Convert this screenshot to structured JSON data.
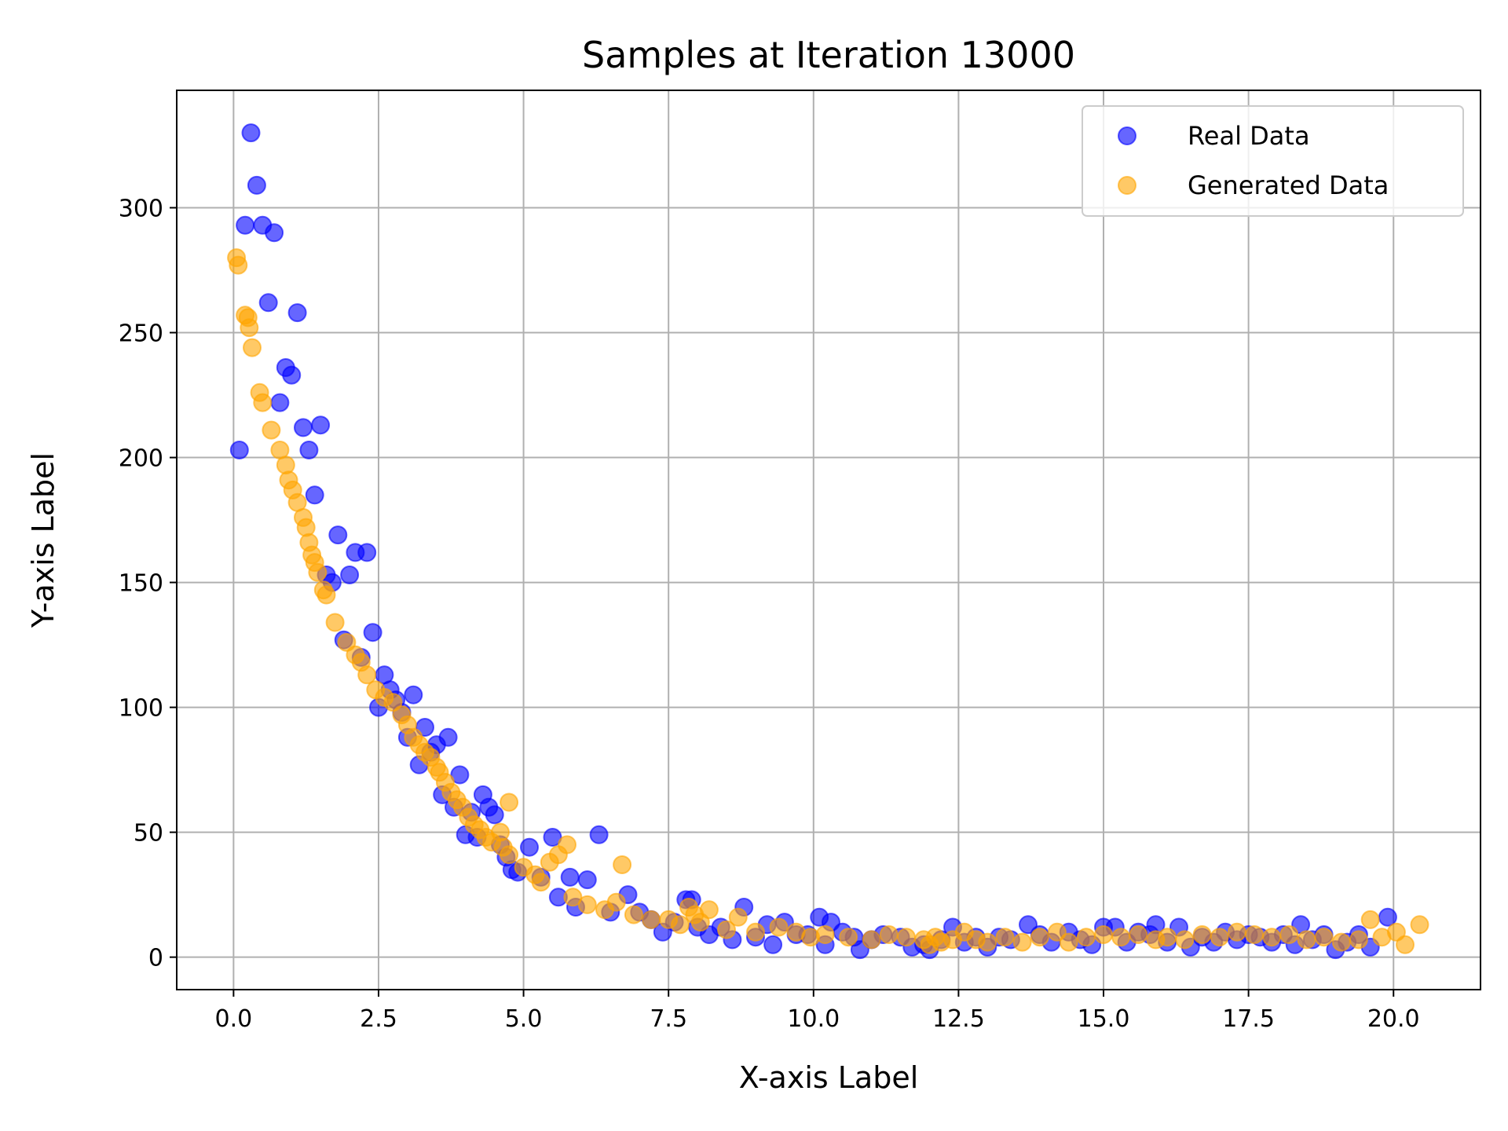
{
  "chart_data": {
    "type": "scatter",
    "title": "Samples at Iteration 13000",
    "xlabel": "X-axis Label",
    "ylabel": "Y-axis Label",
    "xlim": [
      -0.98,
      21.5
    ],
    "ylim": [
      -13,
      347
    ],
    "x_ticks": [
      0.0,
      2.5,
      5.0,
      7.5,
      10.0,
      12.5,
      15.0,
      17.5,
      20.0
    ],
    "x_tick_labels": [
      "0.0",
      "2.5",
      "5.0",
      "7.5",
      "10.0",
      "12.5",
      "15.0",
      "17.5",
      "20.0"
    ],
    "y_ticks": [
      0,
      50,
      100,
      150,
      200,
      250,
      300
    ],
    "y_tick_labels": [
      "0",
      "50",
      "100",
      "150",
      "200",
      "250",
      "300"
    ],
    "grid": true,
    "legend_position": "top-right",
    "series": [
      {
        "name": "Real Data",
        "color": "#0000ff",
        "alpha": 0.6,
        "points": [
          [
            0.1,
            203
          ],
          [
            0.2,
            293
          ],
          [
            0.3,
            330
          ],
          [
            0.4,
            309
          ],
          [
            0.5,
            293
          ],
          [
            0.6,
            262
          ],
          [
            0.7,
            290
          ],
          [
            0.8,
            222
          ],
          [
            0.9,
            236
          ],
          [
            1.0,
            233
          ],
          [
            1.1,
            258
          ],
          [
            1.2,
            212
          ],
          [
            1.3,
            203
          ],
          [
            1.4,
            185
          ],
          [
            1.5,
            213
          ],
          [
            1.6,
            153
          ],
          [
            1.7,
            150
          ],
          [
            1.8,
            169
          ],
          [
            1.9,
            127
          ],
          [
            2.0,
            153
          ],
          [
            2.1,
            162
          ],
          [
            2.2,
            120
          ],
          [
            2.3,
            162
          ],
          [
            2.4,
            130
          ],
          [
            2.5,
            100
          ],
          [
            2.6,
            113
          ],
          [
            2.7,
            107
          ],
          [
            2.8,
            103
          ],
          [
            2.9,
            98
          ],
          [
            3.0,
            88
          ],
          [
            3.1,
            105
          ],
          [
            3.2,
            77
          ],
          [
            3.3,
            92
          ],
          [
            3.4,
            82
          ],
          [
            3.5,
            85
          ],
          [
            3.6,
            65
          ],
          [
            3.7,
            88
          ],
          [
            3.8,
            60
          ],
          [
            3.9,
            73
          ],
          [
            4.0,
            49
          ],
          [
            4.1,
            58
          ],
          [
            4.2,
            48
          ],
          [
            4.3,
            65
          ],
          [
            4.4,
            60
          ],
          [
            4.5,
            57
          ],
          [
            4.6,
            45
          ],
          [
            4.7,
            40
          ],
          [
            4.8,
            35
          ],
          [
            4.9,
            34
          ],
          [
            5.1,
            44
          ],
          [
            5.3,
            32
          ],
          [
            5.5,
            48
          ],
          [
            5.6,
            24
          ],
          [
            5.8,
            32
          ],
          [
            5.9,
            20
          ],
          [
            6.1,
            31
          ],
          [
            6.3,
            49
          ],
          [
            6.5,
            18
          ],
          [
            6.8,
            25
          ],
          [
            7.0,
            18
          ],
          [
            7.2,
            15
          ],
          [
            7.4,
            10
          ],
          [
            7.6,
            14
          ],
          [
            7.8,
            23
          ],
          [
            7.9,
            23
          ],
          [
            8.0,
            12
          ],
          [
            8.2,
            9
          ],
          [
            8.4,
            12
          ],
          [
            8.6,
            7
          ],
          [
            8.8,
            20
          ],
          [
            9.0,
            8
          ],
          [
            9.2,
            13
          ],
          [
            9.3,
            5
          ],
          [
            9.5,
            14
          ],
          [
            9.7,
            9
          ],
          [
            9.9,
            9
          ],
          [
            10.1,
            16
          ],
          [
            10.2,
            5
          ],
          [
            10.3,
            14
          ],
          [
            10.5,
            10
          ],
          [
            10.7,
            8
          ],
          [
            10.8,
            3
          ],
          [
            11.0,
            7
          ],
          [
            11.2,
            9
          ],
          [
            11.5,
            8
          ],
          [
            11.7,
            4
          ],
          [
            11.9,
            5
          ],
          [
            12.0,
            3
          ],
          [
            12.2,
            7
          ],
          [
            12.4,
            12
          ],
          [
            12.6,
            6
          ],
          [
            12.8,
            8
          ],
          [
            13.0,
            4
          ],
          [
            13.2,
            8
          ],
          [
            13.4,
            7
          ],
          [
            13.7,
            13
          ],
          [
            13.9,
            9
          ],
          [
            14.1,
            6
          ],
          [
            14.4,
            10
          ],
          [
            14.6,
            7
          ],
          [
            14.8,
            5
          ],
          [
            15.0,
            12
          ],
          [
            15.2,
            12
          ],
          [
            15.4,
            6
          ],
          [
            15.6,
            10
          ],
          [
            15.8,
            9
          ],
          [
            15.9,
            13
          ],
          [
            16.1,
            6
          ],
          [
            16.3,
            12
          ],
          [
            16.5,
            4
          ],
          [
            16.7,
            8
          ],
          [
            16.9,
            6
          ],
          [
            17.1,
            10
          ],
          [
            17.3,
            7
          ],
          [
            17.5,
            9
          ],
          [
            17.7,
            8
          ],
          [
            17.9,
            6
          ],
          [
            18.1,
            9
          ],
          [
            18.3,
            5
          ],
          [
            18.4,
            13
          ],
          [
            18.6,
            7
          ],
          [
            18.8,
            9
          ],
          [
            19.0,
            3
          ],
          [
            19.2,
            6
          ],
          [
            19.4,
            9
          ],
          [
            19.6,
            4
          ],
          [
            19.9,
            16
          ]
        ]
      },
      {
        "name": "Generated Data",
        "color": "#ffa500",
        "alpha": 0.6,
        "points": [
          [
            0.05,
            280
          ],
          [
            0.08,
            277
          ],
          [
            0.2,
            257
          ],
          [
            0.25,
            256
          ],
          [
            0.27,
            252
          ],
          [
            0.32,
            244
          ],
          [
            0.45,
            226
          ],
          [
            0.5,
            222
          ],
          [
            0.65,
            211
          ],
          [
            0.8,
            203
          ],
          [
            0.9,
            197
          ],
          [
            0.95,
            191
          ],
          [
            1.02,
            187
          ],
          [
            1.1,
            182
          ],
          [
            1.2,
            176
          ],
          [
            1.25,
            172
          ],
          [
            1.3,
            166
          ],
          [
            1.35,
            161
          ],
          [
            1.4,
            158
          ],
          [
            1.45,
            154
          ],
          [
            1.55,
            147
          ],
          [
            1.6,
            145
          ],
          [
            1.75,
            134
          ],
          [
            1.95,
            126
          ],
          [
            2.1,
            121
          ],
          [
            2.2,
            118
          ],
          [
            2.3,
            113
          ],
          [
            2.45,
            107
          ],
          [
            2.6,
            104
          ],
          [
            2.75,
            102
          ],
          [
            2.9,
            97
          ],
          [
            3.0,
            93
          ],
          [
            3.1,
            88
          ],
          [
            3.2,
            85
          ],
          [
            3.3,
            82
          ],
          [
            3.4,
            80
          ],
          [
            3.5,
            76
          ],
          [
            3.55,
            74
          ],
          [
            3.65,
            70
          ],
          [
            3.75,
            66
          ],
          [
            3.85,
            63
          ],
          [
            3.95,
            60
          ],
          [
            4.05,
            56
          ],
          [
            4.15,
            53
          ],
          [
            4.25,
            51
          ],
          [
            4.35,
            48
          ],
          [
            4.45,
            46
          ],
          [
            4.6,
            50
          ],
          [
            4.65,
            44
          ],
          [
            4.75,
            41
          ],
          [
            4.75,
            62
          ],
          [
            5.0,
            36
          ],
          [
            5.2,
            33
          ],
          [
            5.3,
            30
          ],
          [
            5.45,
            38
          ],
          [
            5.6,
            41
          ],
          [
            5.75,
            45
          ],
          [
            5.85,
            24
          ],
          [
            6.1,
            21
          ],
          [
            6.4,
            19
          ],
          [
            6.6,
            22
          ],
          [
            6.7,
            37
          ],
          [
            6.9,
            17
          ],
          [
            7.2,
            15
          ],
          [
            7.5,
            15
          ],
          [
            7.7,
            13
          ],
          [
            7.85,
            20
          ],
          [
            7.95,
            17
          ],
          [
            8.05,
            14
          ],
          [
            8.2,
            19
          ],
          [
            8.5,
            11
          ],
          [
            8.7,
            16
          ],
          [
            9.0,
            10
          ],
          [
            9.4,
            12
          ],
          [
            9.7,
            10
          ],
          [
            9.95,
            8
          ],
          [
            10.2,
            9
          ],
          [
            10.6,
            8
          ],
          [
            11.0,
            7
          ],
          [
            11.3,
            9
          ],
          [
            11.6,
            8
          ],
          [
            11.9,
            7
          ],
          [
            12.0,
            5
          ],
          [
            12.1,
            8
          ],
          [
            12.2,
            6
          ],
          [
            12.4,
            7
          ],
          [
            12.6,
            10
          ],
          [
            12.8,
            7
          ],
          [
            13.0,
            6
          ],
          [
            13.3,
            8
          ],
          [
            13.6,
            6
          ],
          [
            13.9,
            8
          ],
          [
            14.2,
            10
          ],
          [
            14.4,
            6
          ],
          [
            14.7,
            8
          ],
          [
            15.0,
            9
          ],
          [
            15.3,
            8
          ],
          [
            15.6,
            9
          ],
          [
            15.9,
            7
          ],
          [
            16.1,
            8
          ],
          [
            16.4,
            7
          ],
          [
            16.7,
            9
          ],
          [
            17.0,
            8
          ],
          [
            17.3,
            10
          ],
          [
            17.6,
            9
          ],
          [
            17.9,
            8
          ],
          [
            18.2,
            9
          ],
          [
            18.5,
            7
          ],
          [
            18.8,
            8
          ],
          [
            19.1,
            6
          ],
          [
            19.4,
            7
          ],
          [
            19.6,
            15
          ],
          [
            19.8,
            8
          ],
          [
            20.05,
            10
          ],
          [
            20.2,
            5
          ],
          [
            20.45,
            13
          ]
        ]
      }
    ]
  }
}
